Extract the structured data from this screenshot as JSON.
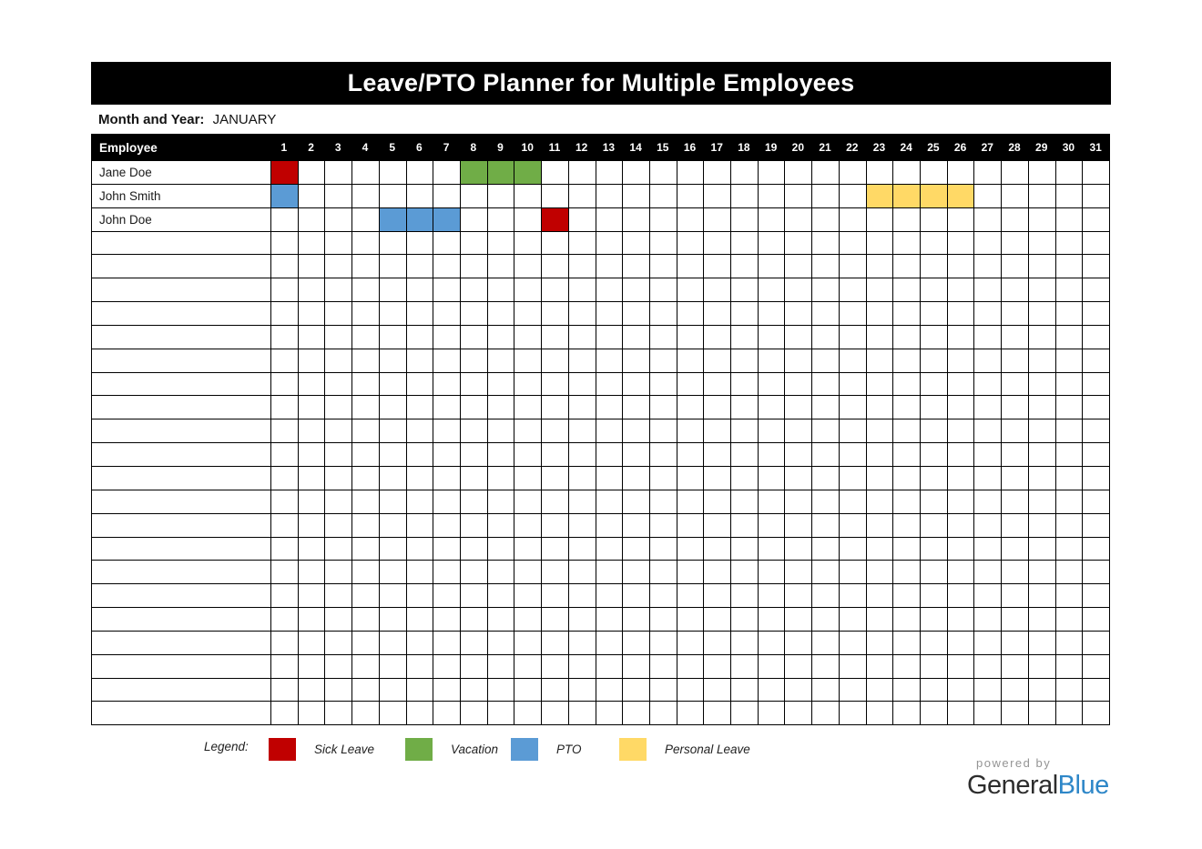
{
  "title": "Leave/PTO Planner for Multiple Employees",
  "month": {
    "label": "Month and Year:",
    "value": "JANUARY"
  },
  "table": {
    "employee_header": "Employee",
    "days": [
      "1",
      "2",
      "3",
      "4",
      "5",
      "6",
      "7",
      "8",
      "9",
      "10",
      "11",
      "12",
      "13",
      "14",
      "15",
      "16",
      "17",
      "18",
      "19",
      "20",
      "21",
      "22",
      "23",
      "24",
      "25",
      "26",
      "27",
      "28",
      "29",
      "30",
      "31"
    ],
    "rows": [
      {
        "name": "Jane Doe",
        "leaves": {
          "1": "sick",
          "8": "vacation",
          "9": "vacation",
          "10": "vacation"
        }
      },
      {
        "name": "John Smith",
        "leaves": {
          "1": "pto",
          "23": "personal",
          "24": "personal",
          "25": "personal",
          "26": "personal"
        }
      },
      {
        "name": "John Doe",
        "leaves": {
          "5": "pto",
          "6": "pto",
          "7": "pto",
          "11": "sick"
        }
      }
    ],
    "empty_row_count": 21
  },
  "legend": {
    "label": "Legend:",
    "items": [
      {
        "key": "sick",
        "label": "Sick Leave",
        "color": "#c00000"
      },
      {
        "key": "vacation",
        "label": "Vacation",
        "color": "#70ad47"
      },
      {
        "key": "pto",
        "label": "PTO",
        "color": "#5b9bd5"
      },
      {
        "key": "personal",
        "label": "Personal Leave",
        "color": "#ffd966"
      }
    ]
  },
  "footer": {
    "powered_by": "powered by",
    "brand": [
      {
        "text": "General",
        "color": "#2d2d2d"
      },
      {
        "text": "Blue",
        "color": "#2e87c8"
      }
    ]
  }
}
